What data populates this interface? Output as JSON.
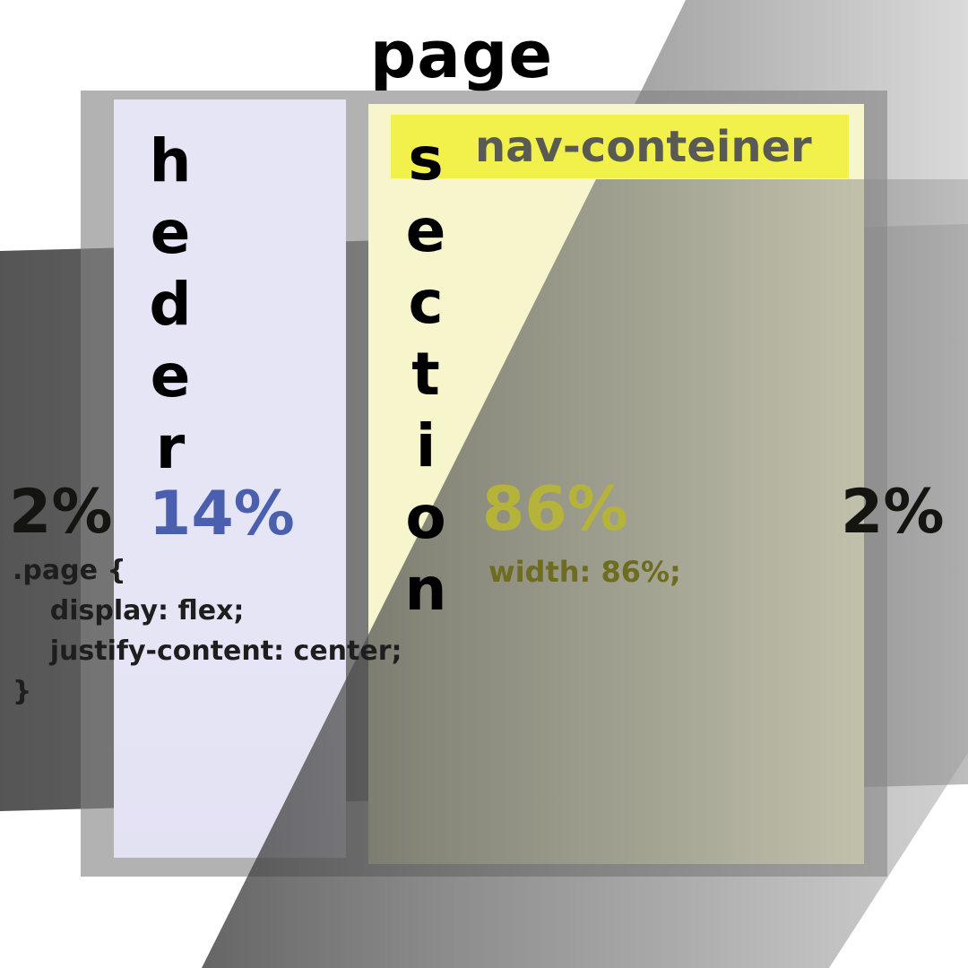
{
  "title": "page",
  "columns": {
    "header": {
      "label": "heder",
      "width_percent": "14%"
    },
    "section": {
      "label": "section",
      "width_percent": "86%",
      "width_note": "width: 86%;",
      "nav": {
        "label": "nav-conteiner"
      }
    }
  },
  "margins": {
    "left": "2%",
    "right": "2%"
  },
  "code": {
    "line1": ".page {",
    "line2": "    display: flex;",
    "line3": "    justify-content: center;",
    "line4": "}"
  },
  "colors": {
    "header_bg": "#e6e5f6",
    "section_bg": "#f6f5cb",
    "nav_bg": "#f2f04a",
    "header_pct": "#4a5fae",
    "section_pct": "#b5b33a",
    "margin_pct": "#141410",
    "page_box": "#828282"
  }
}
